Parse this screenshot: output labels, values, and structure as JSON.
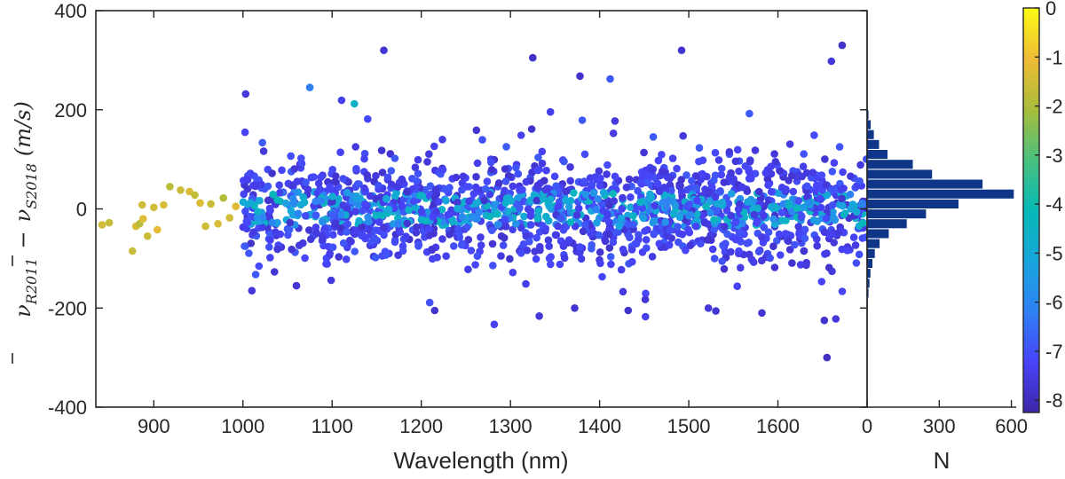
{
  "chart_data": [
    {
      "type": "scatter",
      "xlabel": "Wavelength (nm)",
      "ylabel": "ν̄_R2011 − ν̄_S2018 (m/s)",
      "ylabel_parts": {
        "nu": "ν",
        "sub1": "R2011",
        "minus": "−",
        "sub2": "S2018",
        "unit": "(m/s)"
      },
      "xlim": [
        835,
        1700
      ],
      "ylim": [
        -400,
        400
      ],
      "xticks": [
        900,
        1000,
        1100,
        1200,
        1300,
        1400,
        1500,
        1600
      ],
      "xtick_labels": [
        "900",
        "1000",
        "1100",
        "1200",
        "1300",
        "1400",
        "1500",
        "1600"
      ],
      "yticks": [
        -400,
        -200,
        0,
        200,
        400
      ],
      "ytick_labels": [
        "-400",
        "-200",
        "0",
        "200",
        "400"
      ],
      "grid": false,
      "color_variable": "colorbar value (-8 to 0)",
      "points": [
        {
          "x": 842,
          "y": -32,
          "c": -1.5
        },
        {
          "x": 850,
          "y": -28,
          "c": -1.7
        },
        {
          "x": 876,
          "y": -85,
          "c": -1.6
        },
        {
          "x": 880,
          "y": -35,
          "c": -1.4
        },
        {
          "x": 884,
          "y": -30,
          "c": -1.8
        },
        {
          "x": 887,
          "y": 8,
          "c": -1.5
        },
        {
          "x": 888,
          "y": -20,
          "c": -1.3
        },
        {
          "x": 893,
          "y": -55,
          "c": -1.6
        },
        {
          "x": 900,
          "y": 3,
          "c": -1.5
        },
        {
          "x": 904,
          "y": -42,
          "c": -1.2
        },
        {
          "x": 911,
          "y": 8,
          "c": -1.4
        },
        {
          "x": 918,
          "y": 45,
          "c": -1.8
        },
        {
          "x": 930,
          "y": 38,
          "c": -1.6
        },
        {
          "x": 940,
          "y": 35,
          "c": -1.4
        },
        {
          "x": 946,
          "y": 28,
          "c": -1.7
        },
        {
          "x": 952,
          "y": 12,
          "c": -1.3
        },
        {
          "x": 958,
          "y": -35,
          "c": -1.5
        },
        {
          "x": 964,
          "y": 10,
          "c": -1.6
        },
        {
          "x": 972,
          "y": -30,
          "c": -1.4
        },
        {
          "x": 978,
          "y": 22,
          "c": -1.9
        },
        {
          "x": 985,
          "y": -18,
          "c": -1.5
        },
        {
          "x": 992,
          "y": 5,
          "c": -1.3
        },
        {
          "x": 1003,
          "y": 232,
          "c": -7.6
        },
        {
          "x": 1075,
          "y": 245,
          "c": -6.2
        },
        {
          "x": 1125,
          "y": 212,
          "c": -4.6
        },
        {
          "x": 1158,
          "y": 320,
          "c": -7.7
        },
        {
          "x": 1325,
          "y": 305,
          "c": -7.8
        },
        {
          "x": 1378,
          "y": 268,
          "c": -7.8
        },
        {
          "x": 1492,
          "y": 320,
          "c": -7.7
        },
        {
          "x": 1672,
          "y": 330,
          "c": -7.8
        },
        {
          "x": 1660,
          "y": 298,
          "c": -7.6
        },
        {
          "x": 1010,
          "y": -165,
          "c": -7.6
        },
        {
          "x": 1060,
          "y": -155,
          "c": -7.7
        },
        {
          "x": 1215,
          "y": -205,
          "c": -7.8
        },
        {
          "x": 1372,
          "y": -200,
          "c": -7.7
        },
        {
          "x": 1432,
          "y": -205,
          "c": -7.8
        },
        {
          "x": 1522,
          "y": -200,
          "c": -7.6
        },
        {
          "x": 1582,
          "y": -210,
          "c": -7.7
        },
        {
          "x": 1652,
          "y": -225,
          "c": -7.8
        },
        {
          "x": 1665,
          "y": -222,
          "c": -7.6
        },
        {
          "x": 1655,
          "y": -300,
          "c": -7.9
        }
      ],
      "bulk_cloud": {
        "x_range": [
          1000,
          1700
        ],
        "y_sigma_m_s": 48,
        "count": 1750,
        "color_range": [
          -7.8,
          -4.2
        ]
      }
    },
    {
      "type": "bar",
      "orientation": "horizontal",
      "xlabel": "N",
      "xlim": [
        0,
        620
      ],
      "xticks": [
        0,
        300,
        600
      ],
      "xtick_labels": [
        "0",
        "300",
        "600"
      ],
      "bin_width": 20,
      "bins": [
        -190,
        -170,
        -150,
        -130,
        -110,
        -90,
        -70,
        -50,
        -30,
        -10,
        10,
        30,
        50,
        70,
        90,
        110,
        130,
        150,
        170,
        190
      ],
      "counts": [
        3,
        6,
        10,
        14,
        22,
        32,
        52,
        90,
        165,
        245,
        380,
        610,
        480,
        270,
        190,
        85,
        50,
        28,
        15,
        6
      ]
    },
    {
      "type": "colorbar",
      "range": [
        -8.25,
        0
      ],
      "ticks": [
        0,
        -1,
        -2,
        -3,
        -4,
        -5,
        -6,
        -7,
        -8
      ],
      "tick_labels": [
        "0",
        "-1",
        "-2",
        "-3",
        "-4",
        "-5",
        "-6",
        "-7",
        "-8"
      ],
      "colormap": [
        "#3e26a8",
        "#4743f8",
        "#2f81f4",
        "#18a6dc",
        "#06b9b5",
        "#4ac07e",
        "#a9bd3a",
        "#f0bb36",
        "#f9fb15"
      ]
    }
  ]
}
